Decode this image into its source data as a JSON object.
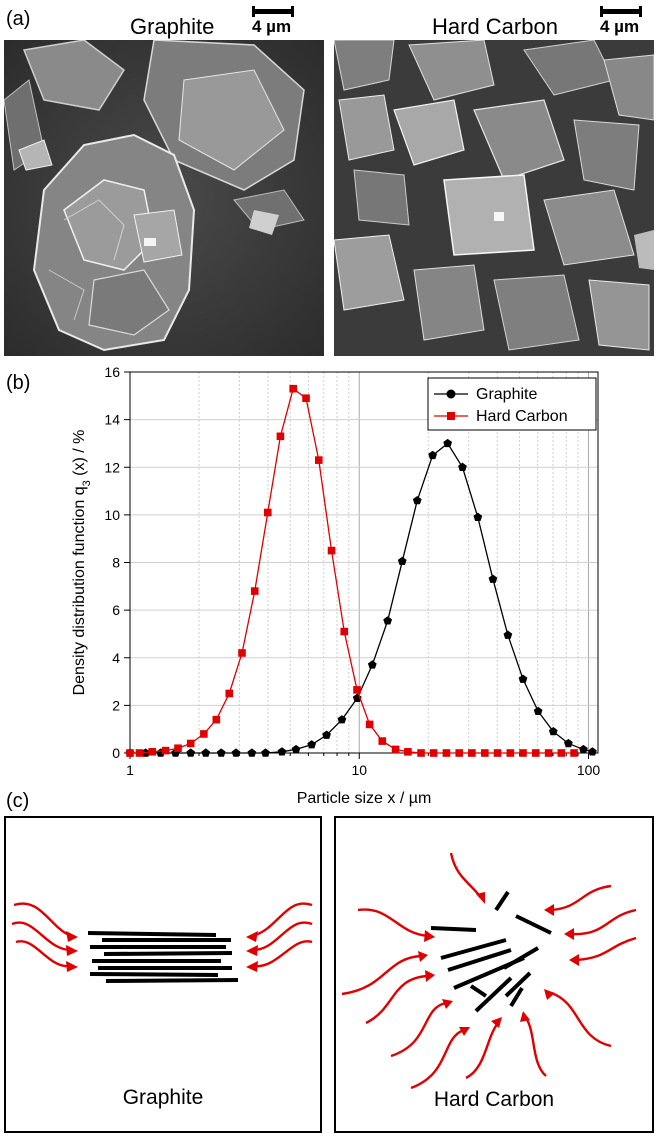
{
  "panel_a": {
    "label": "(a)",
    "left_title": "Graphite",
    "right_title": "Hard Carbon",
    "left_scale": "4 µm",
    "right_scale": "4 µm"
  },
  "panel_b": {
    "label": "(b)"
  },
  "panel_c": {
    "label": "(c)",
    "left_caption": "Graphite",
    "right_caption": "Hard Carbon"
  },
  "colors": {
    "graphite": "#000000",
    "hard_carbon": "#e00000",
    "arrow": "#e00000"
  },
  "chart_data": {
    "type": "line",
    "xlabel": "Particle size x / µm",
    "ylabel": "Density distribution function q3 (x) / %",
    "x_scale": "log",
    "xlim": [
      1,
      110
    ],
    "ylim": [
      0,
      16
    ],
    "x_ticks": [
      "1",
      "10",
      "100"
    ],
    "y_ticks": [
      "0",
      "2",
      "4",
      "6",
      "8",
      "10",
      "12",
      "14",
      "16"
    ],
    "grid": true,
    "legend_position": "top-right",
    "series": [
      {
        "name": "Graphite",
        "marker": "circle",
        "x": [
          1.0,
          1.17,
          1.36,
          1.58,
          1.84,
          2.14,
          2.5,
          2.9,
          3.4,
          3.9,
          4.6,
          5.3,
          6.2,
          7.2,
          8.4,
          9.8,
          11.4,
          13.3,
          15.4,
          17.9,
          20.9,
          24.3,
          28.2,
          32.9,
          38.3,
          44.5,
          51.8,
          60.3,
          70.2,
          81.7,
          95.0,
          104.0
        ],
        "values": [
          0,
          0,
          0,
          0,
          0,
          0,
          0,
          0,
          0,
          0,
          0.05,
          0.15,
          0.35,
          0.75,
          1.4,
          2.3,
          3.7,
          5.55,
          8.05,
          10.6,
          12.5,
          13.0,
          12.0,
          9.9,
          7.3,
          4.95,
          3.1,
          1.75,
          0.9,
          0.4,
          0.15,
          0.05
        ]
      },
      {
        "name": "Hard Carbon",
        "marker": "square",
        "x": [
          1.0,
          1.1,
          1.25,
          1.43,
          1.62,
          1.84,
          2.1,
          2.38,
          2.71,
          3.08,
          3.5,
          3.99,
          4.53,
          5.15,
          5.86,
          6.66,
          7.57,
          8.6,
          9.78,
          11.1,
          12.6,
          14.4,
          16.3,
          18.6,
          21.1,
          24.0,
          27.3,
          31.0,
          35.3,
          40.1,
          45.6,
          51.8,
          58.9,
          67.0,
          76.1,
          86.5
        ],
        "values": [
          0,
          0,
          0.05,
          0.1,
          0.2,
          0.4,
          0.8,
          1.4,
          2.5,
          4.2,
          6.8,
          10.1,
          13.3,
          15.3,
          14.9,
          12.3,
          8.5,
          5.1,
          2.65,
          1.2,
          0.5,
          0.15,
          0.05,
          0,
          0,
          0,
          0,
          0,
          0,
          0,
          0,
          0,
          0,
          0,
          0,
          0
        ]
      }
    ]
  }
}
